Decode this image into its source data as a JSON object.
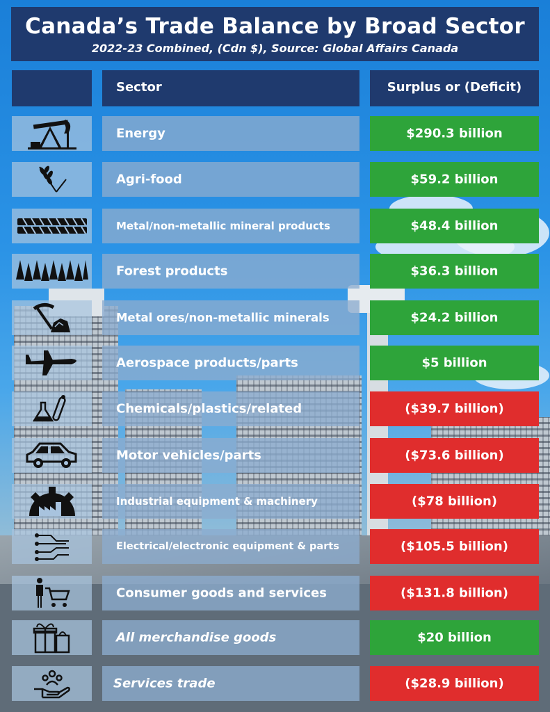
{
  "title": "Canada’s Trade Balance by Broad Sector",
  "subtitle": "2022-23 Combined, (Cdn $), Source: Global Affairs Canada",
  "headers": {
    "sector": "Sector",
    "balance": "Surplus or (Deficit)"
  },
  "colors": {
    "surplus": "#2ea43a",
    "deficit": "#e02d2d",
    "header": "#1f3a6e"
  },
  "rows": [
    {
      "icon": "oil-pump-icon",
      "sector": "Energy",
      "value": "$290.3 billion",
      "status": "surplus",
      "italic": false
    },
    {
      "icon": "wheat-icon",
      "sector": "Agri-food",
      "value": "$59.2 billion",
      "status": "surplus",
      "italic": false
    },
    {
      "icon": "metal-bars-icon",
      "sector": "Metal/non-metallic mineral products",
      "value": "$48.4 billion",
      "status": "surplus",
      "italic": false
    },
    {
      "icon": "forest-icon",
      "sector": "Forest products",
      "value": "$36.3 billion",
      "status": "surplus",
      "italic": false
    },
    {
      "icon": "pickaxe-ore-icon",
      "sector": "Metal ores/non-metallic minerals",
      "value": "$24.2 billion",
      "status": "surplus",
      "italic": false
    },
    {
      "icon": "airplane-icon",
      "sector": "Aerospace products/parts",
      "value": "$5 billion",
      "status": "surplus",
      "italic": false
    },
    {
      "icon": "chemistry-flask-icon",
      "sector": "Chemicals/plastics/related",
      "value": "($39.7 billion)",
      "status": "deficit",
      "italic": false
    },
    {
      "icon": "car-icon",
      "sector": "Motor vehicles/parts",
      "value": "($73.6 billion)",
      "status": "deficit",
      "italic": false
    },
    {
      "icon": "factory-gear-icon",
      "sector": "Industrial equipment & machinery",
      "value": "($78 billion)",
      "status": "deficit",
      "italic": false
    },
    {
      "icon": "circuit-icon",
      "sector": "Electrical/electronic equipment & parts",
      "value": "($105.5 billion)",
      "status": "deficit",
      "italic": false
    },
    {
      "icon": "shopping-cart-icon",
      "sector": "Consumer goods and services",
      "value": "($131.8 billion)",
      "status": "deficit",
      "italic": false
    },
    {
      "icon": "gift-bag-icon",
      "sector": "All merchandise goods",
      "value": "$20 billion",
      "status": "surplus",
      "italic": true
    },
    {
      "icon": "services-hand-icon",
      "sector": "Services trade",
      "value": "($28.9 billion)",
      "status": "deficit",
      "italic": true
    }
  ]
}
